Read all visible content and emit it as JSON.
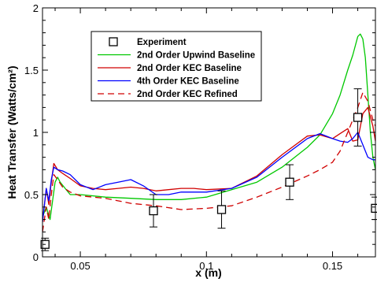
{
  "chart_data": {
    "type": "line",
    "xlabel": "x (m)",
    "ylabel": "Heat Transfer (Watts/cm²)",
    "xlim": [
      0.035,
      0.167
    ],
    "ylim": [
      0,
      2
    ],
    "x_ticks": [
      0.05,
      0.1,
      0.15
    ],
    "x_tick_labels": [
      "0.05",
      "0.1",
      "0.15"
    ],
    "y_ticks": [
      0,
      0.5,
      1,
      1.5,
      2
    ],
    "y_tick_labels": [
      "0",
      "0.5",
      "1",
      "1.5",
      "2"
    ],
    "grid": false,
    "legend_position": "top-left",
    "experiment": {
      "name": "Experiment",
      "color": "#000000",
      "points": [
        {
          "x": 0.036,
          "y": 0.1,
          "err": 0.05
        },
        {
          "x": 0.079,
          "y": 0.37,
          "err": 0.13
        },
        {
          "x": 0.106,
          "y": 0.38,
          "err": 0.15
        },
        {
          "x": 0.133,
          "y": 0.6,
          "err": 0.14
        },
        {
          "x": 0.16,
          "y": 1.12,
          "err": 0.23
        },
        {
          "x": 0.167,
          "y": 0.39,
          "err": 0.09
        }
      ]
    },
    "series": [
      {
        "name": "2nd Order Upwind Baseline",
        "color": "#00c800",
        "dash": "solid",
        "x": [
          0.035,
          0.0365,
          0.038,
          0.039,
          0.04,
          0.041,
          0.042,
          0.044,
          0.046,
          0.05,
          0.06,
          0.07,
          0.08,
          0.09,
          0.1,
          0.11,
          0.12,
          0.13,
          0.14,
          0.145,
          0.15,
          0.153,
          0.156,
          0.158,
          0.16,
          0.161,
          0.162,
          0.163,
          0.164,
          0.165,
          0.166,
          0.167
        ],
        "y": [
          0.32,
          0.4,
          0.3,
          0.45,
          0.6,
          0.64,
          0.6,
          0.55,
          0.5,
          0.5,
          0.48,
          0.47,
          0.46,
          0.46,
          0.48,
          0.54,
          0.6,
          0.72,
          0.88,
          0.98,
          1.15,
          1.3,
          1.5,
          1.62,
          1.77,
          1.79,
          1.75,
          1.6,
          1.3,
          1.0,
          0.8,
          0.7
        ]
      },
      {
        "name": "2nd Order KEC Baseline",
        "color": "#d00000",
        "dash": "solid",
        "x": [
          0.035,
          0.0365,
          0.0375,
          0.0385,
          0.0395,
          0.041,
          0.043,
          0.046,
          0.05,
          0.055,
          0.06,
          0.065,
          0.07,
          0.075,
          0.08,
          0.085,
          0.09,
          0.095,
          0.1,
          0.11,
          0.12,
          0.13,
          0.14,
          0.145,
          0.15,
          0.153,
          0.156,
          0.158,
          0.16,
          0.162,
          0.164,
          0.166,
          0.167
        ],
        "y": [
          0.28,
          0.55,
          0.42,
          0.6,
          0.75,
          0.7,
          0.67,
          0.63,
          0.57,
          0.55,
          0.54,
          0.55,
          0.56,
          0.55,
          0.53,
          0.54,
          0.55,
          0.55,
          0.54,
          0.55,
          0.65,
          0.82,
          0.97,
          0.98,
          0.95,
          0.99,
          1.03,
          0.93,
          0.94,
          1.15,
          1.2,
          1.05,
          0.93
        ]
      },
      {
        "name": "4th Order KEC Baseline",
        "color": "#0000ff",
        "dash": "solid",
        "x": [
          0.035,
          0.0365,
          0.0375,
          0.0385,
          0.0395,
          0.041,
          0.043,
          0.046,
          0.05,
          0.055,
          0.06,
          0.065,
          0.07,
          0.075,
          0.08,
          0.085,
          0.09,
          0.095,
          0.1,
          0.11,
          0.12,
          0.13,
          0.14,
          0.145,
          0.15,
          0.153,
          0.156,
          0.158,
          0.16,
          0.162,
          0.164,
          0.166,
          0.167
        ],
        "y": [
          0.28,
          0.55,
          0.45,
          0.62,
          0.72,
          0.7,
          0.69,
          0.66,
          0.58,
          0.54,
          0.58,
          0.6,
          0.62,
          0.57,
          0.5,
          0.5,
          0.52,
          0.52,
          0.52,
          0.55,
          0.64,
          0.8,
          0.95,
          0.99,
          0.95,
          0.93,
          0.92,
          0.95,
          1.0,
          0.9,
          0.8,
          0.78,
          0.78
        ]
      },
      {
        "name": "2nd Order KEC Refined",
        "color": "#d00000",
        "dash": "dashed",
        "x": [
          0.035,
          0.0365,
          0.0375,
          0.0385,
          0.0395,
          0.041,
          0.043,
          0.046,
          0.05,
          0.06,
          0.07,
          0.08,
          0.09,
          0.1,
          0.105,
          0.11,
          0.12,
          0.13,
          0.14,
          0.145,
          0.15,
          0.153,
          0.156,
          0.158,
          0.16,
          0.162,
          0.164,
          0.166,
          0.167
        ],
        "y": [
          0.2,
          0.4,
          0.3,
          0.5,
          0.66,
          0.62,
          0.56,
          0.52,
          0.49,
          0.47,
          0.43,
          0.41,
          0.38,
          0.39,
          0.4,
          0.41,
          0.48,
          0.56,
          0.65,
          0.7,
          0.76,
          0.85,
          1.0,
          1.1,
          1.2,
          1.32,
          1.25,
          1.1,
          1.05
        ]
      }
    ]
  }
}
